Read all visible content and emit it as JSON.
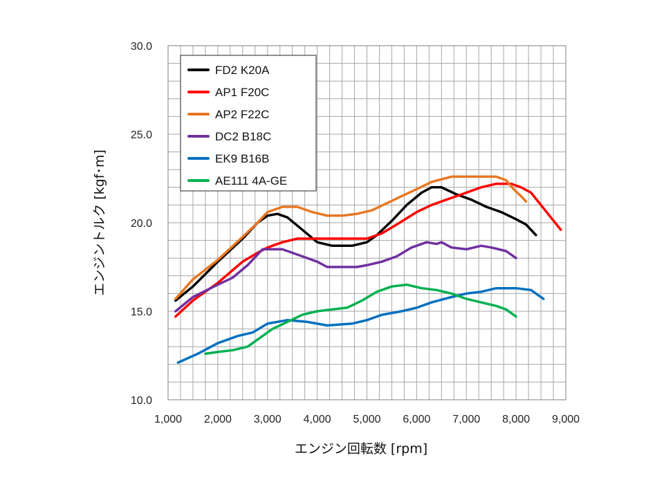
{
  "chart_data": {
    "type": "line",
    "title": "",
    "xlabel": "エンジン回転数 [rpm]",
    "ylabel": "エンジントルク [kgf･m]",
    "xlim": [
      1000,
      9000
    ],
    "ylim": [
      10.0,
      30.0
    ],
    "grid": true,
    "legend_position": "top-left",
    "x_ticks": [
      1000,
      2000,
      3000,
      4000,
      5000,
      6000,
      7000,
      8000,
      9000
    ],
    "x_tick_labels": [
      "1,000",
      "2,000",
      "3,000",
      "4,000",
      "5,000",
      "6,000",
      "7,000",
      "8,000",
      "9,000"
    ],
    "y_ticks": [
      10,
      15,
      20,
      25,
      30
    ],
    "y_tick_labels": [
      "10.0",
      "15.0",
      "20.0",
      "25.0",
      "30.0"
    ],
    "series": [
      {
        "name": "FD2 K20A",
        "color": "#000000",
        "points": [
          [
            1150,
            15.6
          ],
          [
            1500,
            16.4
          ],
          [
            2000,
            17.8
          ],
          [
            2500,
            19.1
          ],
          [
            2800,
            20.0
          ],
          [
            3000,
            20.4
          ],
          [
            3200,
            20.5
          ],
          [
            3400,
            20.3
          ],
          [
            3700,
            19.6
          ],
          [
            4000,
            18.9
          ],
          [
            4300,
            18.7
          ],
          [
            4700,
            18.7
          ],
          [
            5000,
            18.9
          ],
          [
            5200,
            19.3
          ],
          [
            5500,
            20.1
          ],
          [
            5800,
            21.0
          ],
          [
            6100,
            21.7
          ],
          [
            6300,
            22.0
          ],
          [
            6500,
            22.0
          ],
          [
            6800,
            21.6
          ],
          [
            7100,
            21.3
          ],
          [
            7400,
            20.9
          ],
          [
            7700,
            20.6
          ],
          [
            8000,
            20.2
          ],
          [
            8200,
            19.9
          ],
          [
            8400,
            19.3
          ]
        ]
      },
      {
        "name": "AP1 F20C",
        "color": "#ff0000",
        "points": [
          [
            1150,
            14.7
          ],
          [
            1500,
            15.6
          ],
          [
            2000,
            16.6
          ],
          [
            2500,
            17.8
          ],
          [
            2800,
            18.3
          ],
          [
            3000,
            18.6
          ],
          [
            3300,
            18.9
          ],
          [
            3600,
            19.1
          ],
          [
            4000,
            19.1
          ],
          [
            4500,
            19.1
          ],
          [
            5000,
            19.1
          ],
          [
            5300,
            19.4
          ],
          [
            5600,
            19.9
          ],
          [
            6000,
            20.6
          ],
          [
            6300,
            21.0
          ],
          [
            6600,
            21.3
          ],
          [
            7000,
            21.7
          ],
          [
            7300,
            22.0
          ],
          [
            7600,
            22.2
          ],
          [
            7900,
            22.2
          ],
          [
            8100,
            22.0
          ],
          [
            8300,
            21.7
          ],
          [
            8500,
            21.0
          ],
          [
            8700,
            20.3
          ],
          [
            8900,
            19.6
          ]
        ]
      },
      {
        "name": "AP2 F22C",
        "color": "#e87722",
        "points": [
          [
            1150,
            15.7
          ],
          [
            1500,
            16.8
          ],
          [
            2000,
            17.9
          ],
          [
            2500,
            19.2
          ],
          [
            2800,
            20.0
          ],
          [
            3000,
            20.6
          ],
          [
            3300,
            20.9
          ],
          [
            3600,
            20.9
          ],
          [
            3900,
            20.6
          ],
          [
            4200,
            20.4
          ],
          [
            4500,
            20.4
          ],
          [
            4800,
            20.5
          ],
          [
            5100,
            20.7
          ],
          [
            5400,
            21.1
          ],
          [
            5700,
            21.5
          ],
          [
            6000,
            21.9
          ],
          [
            6300,
            22.3
          ],
          [
            6700,
            22.6
          ],
          [
            7000,
            22.6
          ],
          [
            7300,
            22.6
          ],
          [
            7600,
            22.6
          ],
          [
            7800,
            22.4
          ],
          [
            7950,
            21.9
          ],
          [
            8100,
            21.5
          ],
          [
            8200,
            21.2
          ]
        ]
      },
      {
        "name": "DC2 B18C",
        "color": "#7030a0",
        "points": [
          [
            1150,
            15.0
          ],
          [
            1500,
            15.8
          ],
          [
            2000,
            16.5
          ],
          [
            2300,
            16.9
          ],
          [
            2600,
            17.6
          ],
          [
            2900,
            18.5
          ],
          [
            3300,
            18.5
          ],
          [
            3700,
            18.1
          ],
          [
            4000,
            17.8
          ],
          [
            4200,
            17.5
          ],
          [
            4500,
            17.5
          ],
          [
            4800,
            17.5
          ],
          [
            5000,
            17.6
          ],
          [
            5300,
            17.8
          ],
          [
            5600,
            18.1
          ],
          [
            5900,
            18.6
          ],
          [
            6200,
            18.9
          ],
          [
            6400,
            18.8
          ],
          [
            6500,
            18.9
          ],
          [
            6700,
            18.6
          ],
          [
            7000,
            18.5
          ],
          [
            7300,
            18.7
          ],
          [
            7500,
            18.6
          ],
          [
            7800,
            18.4
          ],
          [
            8000,
            18.0
          ]
        ]
      },
      {
        "name": "EK9 B16B",
        "color": "#0070c0",
        "points": [
          [
            1200,
            12.1
          ],
          [
            1600,
            12.6
          ],
          [
            2000,
            13.2
          ],
          [
            2400,
            13.6
          ],
          [
            2700,
            13.8
          ],
          [
            3000,
            14.3
          ],
          [
            3400,
            14.5
          ],
          [
            3800,
            14.4
          ],
          [
            4200,
            14.2
          ],
          [
            4700,
            14.3
          ],
          [
            5000,
            14.5
          ],
          [
            5300,
            14.8
          ],
          [
            5700,
            15.0
          ],
          [
            6000,
            15.2
          ],
          [
            6300,
            15.5
          ],
          [
            6700,
            15.8
          ],
          [
            7000,
            16.0
          ],
          [
            7300,
            16.1
          ],
          [
            7600,
            16.3
          ],
          [
            8000,
            16.3
          ],
          [
            8300,
            16.2
          ],
          [
            8450,
            15.9
          ],
          [
            8550,
            15.7
          ]
        ]
      },
      {
        "name": "AE111 4A-GE",
        "color": "#00b050",
        "points": [
          [
            1750,
            12.6
          ],
          [
            2000,
            12.7
          ],
          [
            2300,
            12.8
          ],
          [
            2600,
            13.0
          ],
          [
            2900,
            13.6
          ],
          [
            3100,
            14.0
          ],
          [
            3400,
            14.4
          ],
          [
            3700,
            14.8
          ],
          [
            4000,
            15.0
          ],
          [
            4300,
            15.1
          ],
          [
            4600,
            15.2
          ],
          [
            4900,
            15.6
          ],
          [
            5200,
            16.1
          ],
          [
            5500,
            16.4
          ],
          [
            5800,
            16.5
          ],
          [
            6100,
            16.3
          ],
          [
            6400,
            16.2
          ],
          [
            6700,
            16.0
          ],
          [
            7000,
            15.7
          ],
          [
            7300,
            15.5
          ],
          [
            7600,
            15.3
          ],
          [
            7800,
            15.1
          ],
          [
            8000,
            14.7
          ]
        ]
      }
    ]
  }
}
